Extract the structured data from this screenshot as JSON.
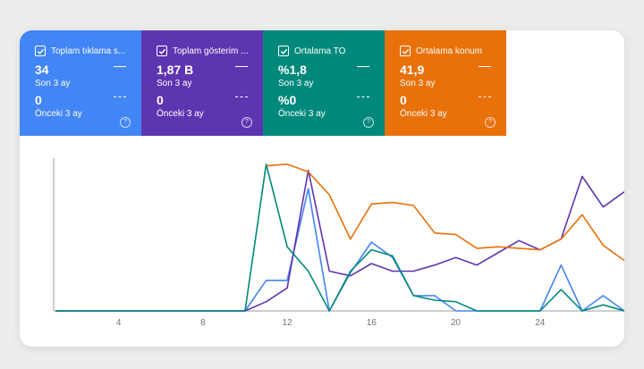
{
  "tiles": [
    {
      "title": "Toplam tıklama s...",
      "value": "34",
      "period": "Son 3 ay",
      "prev_value": "0",
      "prev_period": "Önceki 3 ay",
      "color": "#4285f4"
    },
    {
      "title": "Toplam gösterim ...",
      "value": "1,87 B",
      "period": "Son 3 ay",
      "prev_value": "0",
      "prev_period": "Önceki 3 ay",
      "color": "#5e35b1"
    },
    {
      "title": "Ortalama TO",
      "value": "%1,8",
      "period": "Son 3 ay",
      "prev_value": "%0",
      "prev_period": "Önceki 3 ay",
      "color": "#00897b"
    },
    {
      "title": "Ortalama konum",
      "value": "41,9",
      "period": "Son 3 ay",
      "prev_value": "0",
      "prev_period": "Önceki 3 ay",
      "color": "#e8710a"
    }
  ],
  "help_glyph": "?",
  "chart_data": {
    "type": "line",
    "x": [
      1,
      2,
      3,
      4,
      5,
      6,
      7,
      8,
      9,
      10,
      11,
      12,
      13,
      14,
      15,
      16,
      17,
      18,
      19,
      20,
      21,
      22,
      23,
      24,
      25,
      26,
      27,
      28
    ],
    "xticks": [
      "4",
      "8",
      "12",
      "16",
      "20",
      "24"
    ],
    "xtick_values": [
      4,
      8,
      12,
      16,
      20,
      24
    ],
    "xlim": [
      1,
      28
    ],
    "grid": false,
    "series": [
      {
        "color": "#4285f4",
        "values": [
          0,
          0,
          0,
          0,
          0,
          0,
          0,
          0,
          0,
          0,
          0.2,
          0.2,
          0.8,
          0,
          0.25,
          0.45,
          0.35,
          0.1,
          0.1,
          0,
          0,
          0,
          0,
          0,
          0.3,
          0,
          0.1,
          0
        ]
      },
      {
        "color": "#5e35b1",
        "values": [
          0,
          0,
          0,
          0,
          0,
          0,
          0,
          0,
          0,
          0,
          0.06,
          0.15,
          0.92,
          0.26,
          0.23,
          0.31,
          0.26,
          0.26,
          0.3,
          0.35,
          0.3,
          0.38,
          0.46,
          0.4,
          0.47,
          0.88,
          0.68,
          0.78
        ]
      },
      {
        "color": "#00897b",
        "values": [
          0,
          0,
          0,
          0,
          0,
          0,
          0,
          0,
          0,
          0,
          0.96,
          0.42,
          0.26,
          0,
          0.26,
          0.4,
          0.36,
          0.1,
          0.07,
          0.06,
          0,
          0,
          0,
          0,
          0.14,
          0,
          0.04,
          0
        ]
      },
      {
        "color": "#e8710a",
        "values": [
          null,
          null,
          null,
          null,
          null,
          null,
          null,
          null,
          null,
          null,
          0.95,
          0.96,
          0.91,
          0.76,
          0.47,
          0.7,
          0.71,
          0.69,
          0.51,
          0.5,
          0.41,
          0.42,
          0.41,
          0.4,
          0.47,
          0.63,
          0.43,
          0.33
        ]
      }
    ]
  }
}
